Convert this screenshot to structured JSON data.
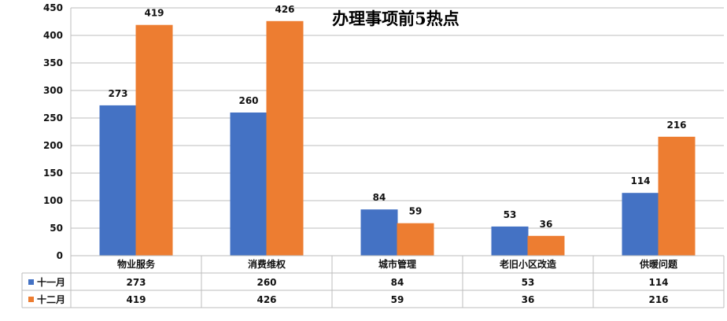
{
  "chart_data": {
    "type": "bar",
    "title": "办理事项前5热点",
    "categories": [
      "物业服务",
      "消费维权",
      "城市管理",
      "老旧小区改造",
      "供暖问题"
    ],
    "series": [
      {
        "name": "十一月",
        "color": "#4472C4",
        "values": [
          273,
          260,
          84,
          53,
          114
        ]
      },
      {
        "name": "十二月",
        "color": "#ED7D31",
        "values": [
          419,
          426,
          59,
          36,
          216
        ]
      }
    ],
    "ylim": [
      0,
      450
    ],
    "yticks": [
      0,
      50,
      100,
      150,
      200,
      250,
      300,
      350,
      400,
      450
    ],
    "grid": true,
    "legend": "data-table"
  }
}
